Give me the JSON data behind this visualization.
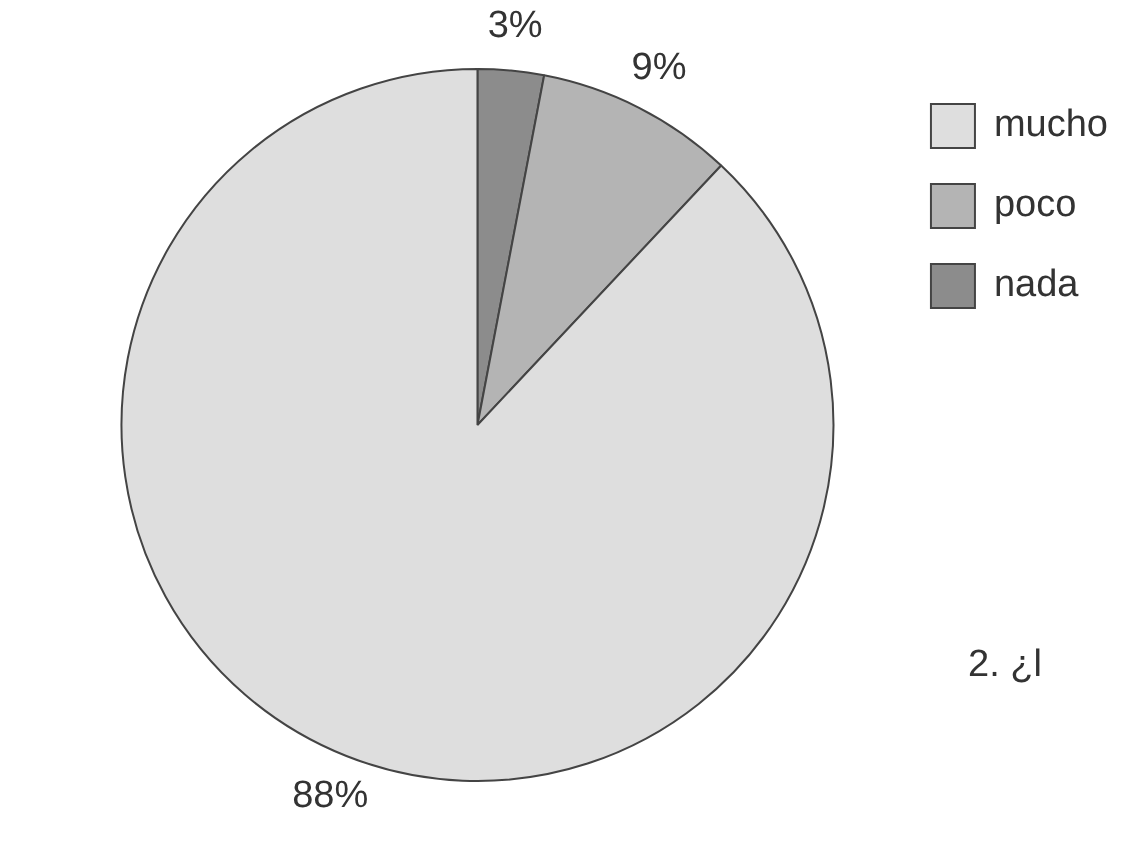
{
  "chart_data": {
    "type": "pie",
    "categories": [
      "nada",
      "poco",
      "mucho"
    ],
    "values": [
      3,
      9,
      88
    ],
    "colors": [
      "#8c8c8c",
      "#b4b4b4",
      "#dedede"
    ],
    "value_labels": [
      "3%",
      "9%",
      "88%"
    ],
    "legend": "top right",
    "annotations": [
      "2. ¿l"
    ]
  }
}
